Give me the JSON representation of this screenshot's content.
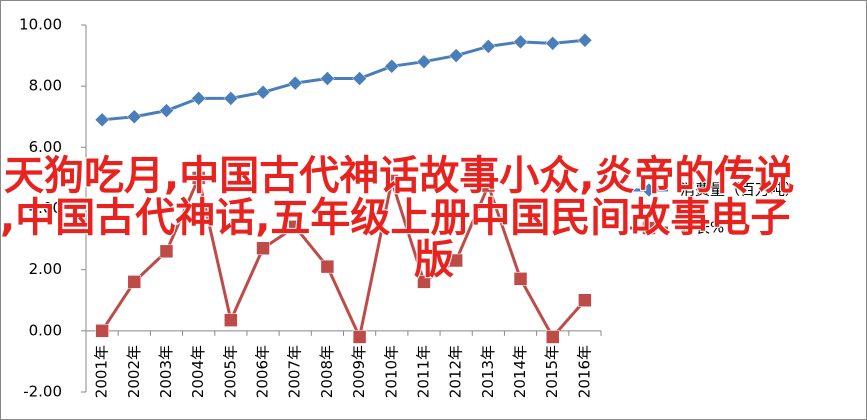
{
  "chart_data": {
    "type": "line",
    "categories": [
      "2001年",
      "2002年",
      "2003年",
      "2004年",
      "2005年",
      "2006年",
      "2007年",
      "2008年",
      "2009年",
      "2010年",
      "2011年",
      "2012年",
      "2013年",
      "2014年",
      "2015年",
      "2016年"
    ],
    "series": [
      {
        "name": "消费量（百万吨）",
        "color": "#4a7ebb",
        "marker": "diamond",
        "values": [
          6.9,
          7.0,
          7.2,
          7.6,
          7.6,
          7.8,
          8.1,
          8.25,
          8.25,
          8.65,
          8.8,
          9.0,
          9.3,
          9.45,
          9.4,
          9.5
        ]
      },
      {
        "name": "增长%",
        "color": "#be4b48",
        "marker": "square",
        "values": [
          0.0,
          1.6,
          2.6,
          5.0,
          0.35,
          2.7,
          3.4,
          2.1,
          -0.2,
          4.9,
          1.6,
          2.3,
          4.75,
          1.7,
          -0.2,
          1.0
        ]
      }
    ],
    "ylim": [
      -2,
      10
    ],
    "yticks": [
      {
        "value": -2,
        "label": "-2.00"
      },
      {
        "value": 0,
        "label": "0.00"
      },
      {
        "value": 2,
        "label": "2.00"
      },
      {
        "value": 4,
        "label": "4.00"
      },
      {
        "value": 6,
        "label": "6.00"
      },
      {
        "value": 8,
        "label": "8.00"
      },
      {
        "value": 10,
        "label": "10.00"
      }
    ],
    "grid": false
  },
  "overlay": {
    "line1": "天狗吃月,中国古代神话故事小众,炎帝的传说",
    "line2": ",中国古代神话,五年级上册中国民间故事电子",
    "line3": "版"
  }
}
